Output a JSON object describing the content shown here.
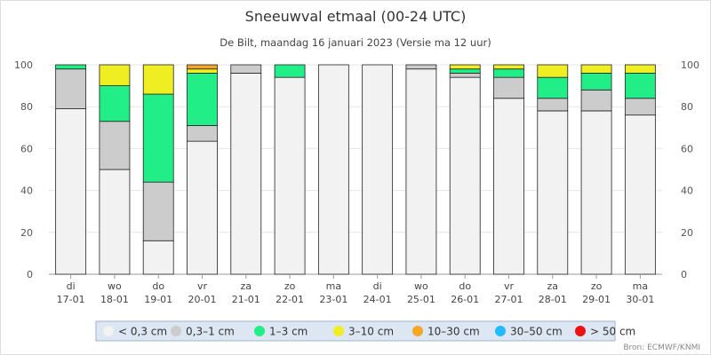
{
  "chart_data": {
    "type": "bar",
    "stacked": true,
    "title": "Sneeuwval etmaal (00-24 UTC)",
    "subtitle": "De Bilt, maandag 16 januari 2023 (Versie ma 12 uur)",
    "categories": [
      {
        "day": "di",
        "date": "17-01"
      },
      {
        "day": "wo",
        "date": "18-01"
      },
      {
        "day": "do",
        "date": "19-01"
      },
      {
        "day": "vr",
        "date": "20-01"
      },
      {
        "day": "za",
        "date": "21-01"
      },
      {
        "day": "zo",
        "date": "22-01"
      },
      {
        "day": "ma",
        "date": "23-01"
      },
      {
        "day": "di",
        "date": "24-01"
      },
      {
        "day": "wo",
        "date": "25-01"
      },
      {
        "day": "do",
        "date": "26-01"
      },
      {
        "day": "vr",
        "date": "27-01"
      },
      {
        "day": "za",
        "date": "28-01"
      },
      {
        "day": "zo",
        "date": "29-01"
      },
      {
        "day": "ma",
        "date": "30-01"
      }
    ],
    "series": [
      {
        "name": "< 0,3 cm",
        "color": "#f2f2f2",
        "values": [
          79,
          50,
          16,
          63.5,
          96,
          94,
          100,
          100,
          98,
          94,
          84,
          78,
          78,
          76
        ]
      },
      {
        "name": "0,3-1 cm",
        "color": "#cccccc",
        "values": [
          19,
          23,
          28,
          7.5,
          4,
          0,
          0,
          0,
          2,
          2,
          10,
          6,
          10,
          8
        ]
      },
      {
        "name": "1-3 cm",
        "color": "#22ee88",
        "values": [
          2,
          17,
          42,
          25,
          0,
          6,
          0,
          0,
          0,
          2,
          4,
          10,
          8,
          12
        ]
      },
      {
        "name": "3-10 cm",
        "color": "#eeee22",
        "values": [
          0,
          10,
          14,
          2,
          0,
          0,
          0,
          0,
          0,
          2,
          2,
          6,
          4,
          4
        ]
      },
      {
        "name": "10-30 cm",
        "color": "#f5a623",
        "values": [
          0,
          0,
          0,
          2,
          0,
          0,
          0,
          0,
          0,
          0,
          0,
          0,
          0,
          0
        ]
      },
      {
        "name": "30-50 cm",
        "color": "#22bbff",
        "values": [
          0,
          0,
          0,
          0,
          0,
          0,
          0,
          0,
          0,
          0,
          0,
          0,
          0,
          0
        ]
      },
      {
        "name": "> 50 cm",
        "color": "#ee1111",
        "values": [
          0,
          0,
          0,
          0,
          0,
          0,
          0,
          0,
          0,
          0,
          0,
          0,
          0,
          0
        ]
      }
    ],
    "legend_labels": [
      "< 0,3 cm",
      "0,3–1 cm",
      "1–3 cm",
      "3–10 cm",
      "10–30 cm",
      "30–50 cm",
      "> 50 cm"
    ],
    "ylim": [
      0,
      100
    ],
    "yticks": [
      0,
      20,
      40,
      60,
      80,
      100
    ],
    "legend_position": "bottom-center",
    "grid": true,
    "source": "Bron: ECMWF/KNMI"
  }
}
